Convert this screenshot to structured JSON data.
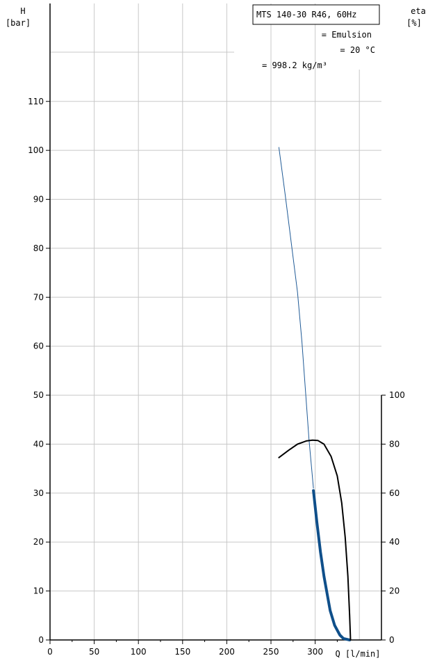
{
  "chart_data": {
    "type": "line",
    "title_box": "MTS 140-30 R46, 60Hz",
    "fluid_line": "= Emulsion",
    "temperature_line": "= 20  °C",
    "density_line": "= 998.2 kg/m³",
    "left_axis": {
      "label_line1": "H",
      "label_line2": "[bar]",
      "ylim": [
        0,
        130
      ],
      "ticks": [
        0,
        10,
        20,
        30,
        40,
        50,
        60,
        70,
        80,
        90,
        100,
        110
      ],
      "tick_labels": [
        "0",
        "10",
        "20",
        "30",
        "40",
        "50",
        "60",
        "70",
        "80",
        "90",
        "100",
        "110"
      ]
    },
    "right_axis": {
      "label_line1": "eta",
      "label_line2": "[%]",
      "ylim": [
        0,
        260
      ],
      "ticks": [
        0,
        20,
        40,
        60,
        80,
        100
      ],
      "tick_labels": [
        "0",
        "20",
        "40",
        "60",
        "80",
        "100"
      ]
    },
    "x_axis": {
      "label": "Q [l/min]",
      "xlim": [
        0,
        375
      ],
      "ticks": [
        0,
        50,
        100,
        150,
        200,
        250,
        300
      ],
      "tick_labels": [
        "0",
        "50",
        "100",
        "150",
        "200",
        "250",
        "300"
      ]
    },
    "grid": true,
    "series": [
      {
        "role": "head-thin",
        "color": "#1f5a96",
        "width": 1,
        "axis": "left",
        "points": [
          [
            259,
            100.6
          ],
          [
            266,
            91
          ],
          [
            273,
            81
          ],
          [
            280,
            71
          ],
          [
            285,
            61
          ],
          [
            289,
            51
          ],
          [
            293,
            41
          ],
          [
            298,
            31
          ]
        ]
      },
      {
        "role": "head-thick",
        "color": "#0f4f8a",
        "width": 4,
        "axis": "left",
        "points": [
          [
            298,
            30.5
          ],
          [
            302,
            24
          ],
          [
            306,
            18
          ],
          [
            310,
            13
          ],
          [
            313,
            10
          ],
          [
            317,
            6
          ],
          [
            322,
            3
          ],
          [
            328,
            1
          ],
          [
            332,
            0.3
          ],
          [
            339,
            0
          ]
        ]
      },
      {
        "role": "efficiency",
        "color": "#000000",
        "width": 2,
        "axis": "right",
        "points": [
          [
            259,
            74.5
          ],
          [
            270,
            77.5
          ],
          [
            280,
            80
          ],
          [
            290,
            81.3
          ],
          [
            297,
            81.6
          ],
          [
            303,
            81.5
          ],
          [
            310,
            80
          ],
          [
            318,
            75
          ],
          [
            325,
            67
          ],
          [
            330,
            56
          ],
          [
            334,
            42
          ],
          [
            337,
            26
          ],
          [
            339,
            10
          ],
          [
            340,
            0
          ]
        ]
      }
    ]
  }
}
